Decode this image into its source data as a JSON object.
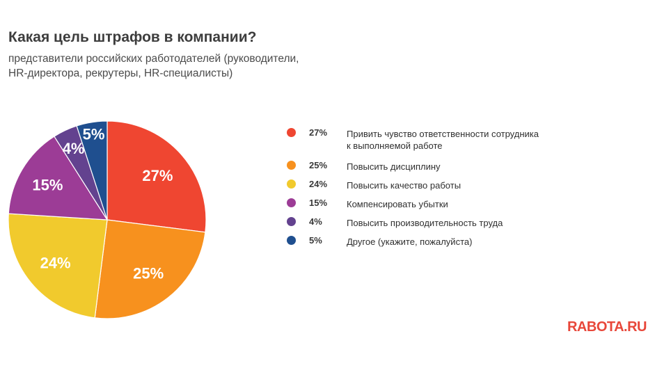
{
  "header": {
    "title": "Какая цель штрафов в компании?",
    "subtitle_line1": "представители российских работодателей (руководители,",
    "subtitle_line2": "HR-директора, рекрутеры, HR-специалисты)"
  },
  "chart_data": {
    "type": "pie",
    "title": "Какая цель штрафов в компании?",
    "slices": [
      {
        "label": "Привить чувство ответственности сотрудника к выполняемой работе",
        "value": 27,
        "display": "27%",
        "color": "#ef4631"
      },
      {
        "label": "Повысить дисциплину",
        "value": 25,
        "display": "25%",
        "color": "#f7911e"
      },
      {
        "label": "Повысить качество работы",
        "value": 24,
        "display": "24%",
        "color": "#f1ca2d"
      },
      {
        "label": "Компенсировать убытки",
        "value": 15,
        "display": "15%",
        "color": "#9c3c96"
      },
      {
        "label": "Повысить производительность труда",
        "value": 4,
        "display": "4%",
        "color": "#63428f"
      },
      {
        "label": "Другое (укажите, пожалуйста)",
        "value": 5,
        "display": "5%",
        "color": "#1f4f8f"
      }
    ],
    "legend_position": "right"
  },
  "legend": {
    "items": [
      {
        "pct": "27%",
        "label_line1": "Привить чувство ответственности сотрудника",
        "label_line2": "к выполняемой работе",
        "color": "#ef4631"
      },
      {
        "pct": "25%",
        "label_line1": "Повысить дисциплину",
        "label_line2": "",
        "color": "#f7911e"
      },
      {
        "pct": "24%",
        "label_line1": "Повысить качество работы",
        "label_line2": "",
        "color": "#f1ca2d"
      },
      {
        "pct": "15%",
        "label_line1": "Компенсировать убытки",
        "label_line2": "",
        "color": "#9c3c96"
      },
      {
        "pct": "4%",
        "label_line1": "Повысить производительность труда",
        "label_line2": "",
        "color": "#63428f"
      },
      {
        "pct": "5%",
        "label_line1": "Другое (укажите, пожалуйста)",
        "label_line2": "",
        "color": "#1f4f8f"
      }
    ]
  },
  "brand": {
    "logo_text": "RABOTA.RU",
    "color": "#e8473a"
  }
}
